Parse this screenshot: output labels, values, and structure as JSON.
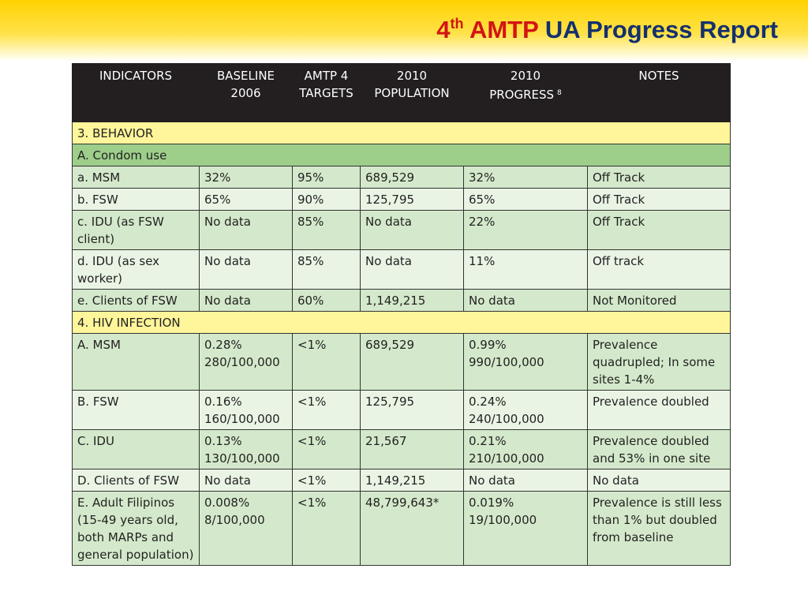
{
  "title": {
    "ordinal": "4",
    "ordinal_suffix": "th",
    "amtp": "AMTP",
    "rest": "UA Progress Report"
  },
  "table": {
    "headers": [
      {
        "line1": "INDICATORS",
        "line2": ""
      },
      {
        "line1": "BASELINE",
        "line2": "2006"
      },
      {
        "line1": "AMTP 4",
        "line2": "TARGETS"
      },
      {
        "line1": "2010",
        "line2": "POPULATION"
      },
      {
        "line1": "2010",
        "line2": "PROGRESS",
        "footnote": "8"
      },
      {
        "line1": "NOTES",
        "line2": ""
      }
    ],
    "section_behavior": "3. BEHAVIOR",
    "subsection_condom": "A. Condom use",
    "behavior_rows": [
      {
        "indicator": "a. MSM",
        "baseline": "32%",
        "target": "95%",
        "population": "689,529",
        "progress": "32%",
        "notes": "Off Track"
      },
      {
        "indicator": "b. FSW",
        "baseline": "65%",
        "target": "90%",
        "population": "125,795",
        "progress": "65%",
        "notes": "Off Track"
      },
      {
        "indicator": "c. IDU (as FSW client)",
        "baseline": "No data",
        "target": "85%",
        "population": "No data",
        "progress": "22%",
        "notes": "Off Track"
      },
      {
        "indicator": " d. IDU (as sex worker)",
        "baseline": "No data",
        "target": "85%",
        "population": "No data",
        "progress": "11%",
        "notes": "Off track"
      },
      {
        "indicator": "e. Clients of FSW",
        "baseline": "No data",
        "target": "60%",
        "population": "1,149,215",
        "progress": "No data",
        "notes": "Not Monitored"
      }
    ],
    "section_hiv": "4. HIV INFECTION",
    "hiv_rows": [
      {
        "indicator": "A. MSM",
        "baseline_pct": "0.28%",
        "baseline_rate": "280/100,000",
        "target": "<1%",
        "population": "689,529",
        "progress_pct": "0.99%",
        "progress_rate": "990/100,000",
        "notes": "Prevalence quadrupled; In some sites 1-4%"
      },
      {
        "indicator": "B. FSW",
        "baseline_pct": "0.16%",
        "baseline_rate": "160/100,000",
        "target": "<1%",
        "population": "125,795",
        "progress_pct": "0.24%",
        "progress_rate": "240/100,000",
        "notes": "Prevalence  doubled"
      },
      {
        "indicator": "C. IDU",
        "baseline_pct": "0.13%",
        "baseline_rate": "130/100,000",
        "target": "<1%",
        "population": "21,567",
        "progress_pct": "0.21%",
        "progress_rate": "210/100,000",
        "notes": "Prevalence  doubled and  53% in one site"
      },
      {
        "indicator": "D. Clients of FSW",
        "baseline_pct": "No data",
        "baseline_rate": "",
        "target": "<1%",
        "population": "1,149,215",
        "progress_pct": "No data",
        "progress_rate": "",
        "notes": "No data"
      },
      {
        "indicator": "E. Adult Filipinos (15-49 years old, both MARPs and general population)",
        "baseline_pct": "0.008%",
        "baseline_rate": "8/100,000",
        "target": "<1%",
        "population": "48,799,643*",
        "progress_pct": "0.019%",
        "progress_rate": "19/100,000",
        "notes": "Prevalence is still less than 1% but doubled from baseline"
      }
    ]
  }
}
